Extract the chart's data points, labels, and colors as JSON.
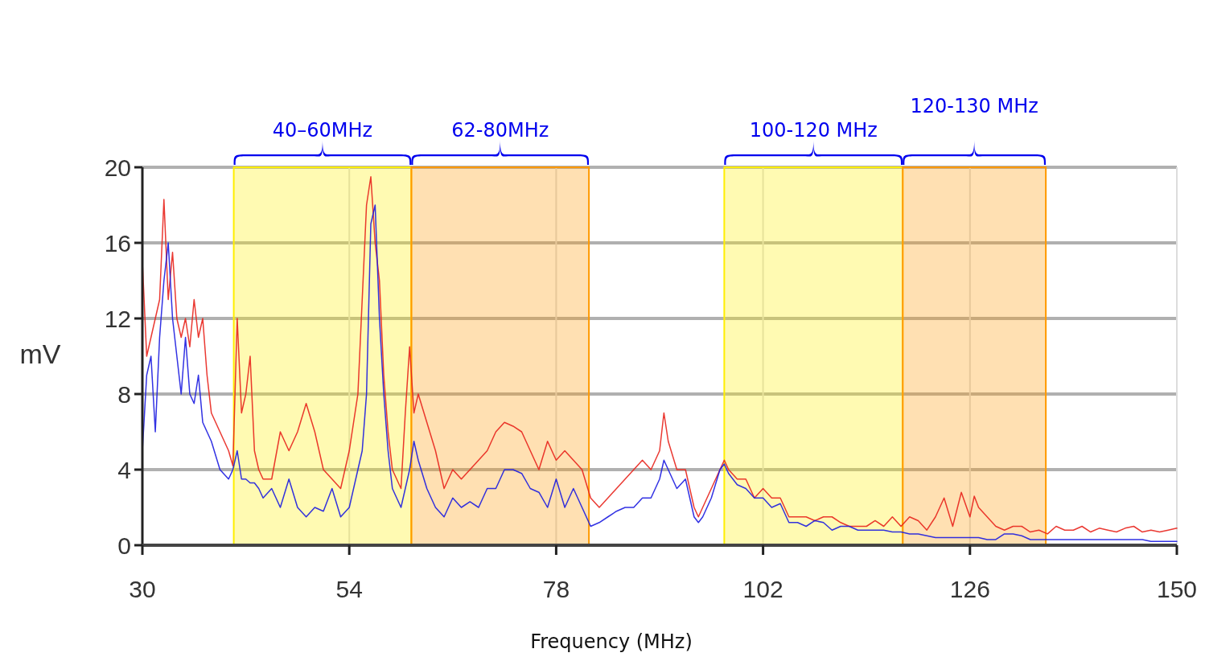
{
  "chart_data": {
    "type": "line",
    "xlabel": "Frequency (MHz)",
    "ylabel": "mV",
    "xlim": [
      30,
      150
    ],
    "xticks": [
      30,
      54,
      78,
      102,
      126,
      150
    ],
    "ylim": [
      0,
      20
    ],
    "yticks": [
      0,
      4,
      8,
      12,
      16,
      20
    ],
    "grid": true,
    "marker": "none",
    "line_style": "solid",
    "x": [
      30,
      30.5,
      31,
      31.5,
      32,
      32.5,
      33,
      33.5,
      34,
      34.5,
      35,
      35.5,
      36,
      36.5,
      37,
      37.5,
      38,
      39,
      40,
      40.5,
      41,
      41.5,
      42,
      42.5,
      43,
      43.5,
      44,
      45,
      46,
      47,
      48,
      49,
      50,
      51,
      52,
      53,
      54,
      55,
      55.5,
      56,
      56.5,
      57,
      57.5,
      58,
      58.5,
      59,
      60,
      60.5,
      61,
      61.5,
      62,
      63,
      64,
      65,
      66,
      67,
      68,
      69,
      70,
      71,
      72,
      73,
      74,
      75,
      76,
      77,
      78,
      79,
      80,
      81,
      82,
      83,
      84,
      85,
      86,
      87,
      88,
      89,
      90,
      90.5,
      91,
      92,
      93,
      94,
      94.5,
      95,
      96,
      97,
      97.5,
      98,
      99,
      100,
      101,
      102,
      103,
      104,
      105,
      106,
      107,
      108,
      109,
      110,
      111,
      112,
      113,
      114,
      115,
      116,
      117,
      118,
      119,
      120,
      121,
      122,
      123,
      124,
      125,
      126,
      126.5,
      127,
      128,
      129,
      130,
      131,
      132,
      133,
      134,
      135,
      136,
      137,
      138,
      139,
      140,
      141,
      142,
      143,
      144,
      145,
      146,
      147,
      148,
      149,
      150
    ],
    "series": [
      {
        "color": "#e8231c",
        "values": [
          15,
          10,
          11,
          12,
          13,
          18.3,
          13,
          15.5,
          12,
          11,
          12,
          10.5,
          13,
          11,
          12,
          9,
          7,
          6,
          5,
          4.2,
          12,
          7,
          8,
          10,
          5,
          4,
          3.5,
          3.5,
          6,
          5,
          6,
          7.5,
          6,
          4,
          3.5,
          3,
          5,
          8,
          13,
          18,
          19.5,
          16,
          14,
          9,
          6,
          4,
          3,
          7,
          10.5,
          7,
          8,
          6.5,
          5,
          3,
          4,
          3.5,
          4,
          4.5,
          5,
          6,
          6.5,
          6.3,
          6,
          5,
          4,
          5.5,
          4.5,
          5,
          4.5,
          4,
          2.5,
          2,
          2.5,
          3,
          3.5,
          4,
          4.5,
          4,
          5,
          7,
          5.5,
          4,
          4,
          2,
          1.5,
          2,
          3,
          4,
          4.5,
          4,
          3.5,
          3.5,
          2.5,
          3,
          2.5,
          2.5,
          1.5,
          1.5,
          1.5,
          1.3,
          1.5,
          1.5,
          1.2,
          1,
          1,
          1,
          1.3,
          1,
          1.5,
          1,
          1.5,
          1.3,
          0.8,
          1.5,
          2.5,
          1,
          2.8,
          1.5,
          2.6,
          2,
          1.5,
          1,
          0.8,
          1,
          1,
          0.7,
          0.8,
          0.6,
          1,
          0.8,
          0.8,
          1,
          0.7,
          0.9,
          0.8,
          0.7,
          0.9,
          1,
          0.7,
          0.8,
          0.7,
          0.8,
          0.9
        ]
      },
      {
        "color": "#1c1ce0",
        "values": [
          5,
          9,
          10,
          6,
          11,
          14,
          16,
          12,
          10,
          8,
          11,
          8,
          7.5,
          9,
          6.5,
          6,
          5.5,
          4,
          3.5,
          4,
          5,
          3.5,
          3.5,
          3.3,
          3.3,
          3,
          2.5,
          3,
          2,
          3.5,
          2,
          1.5,
          2,
          1.8,
          3,
          1.5,
          2,
          4,
          5,
          8,
          17,
          18,
          12,
          8,
          5,
          3,
          2,
          3,
          4,
          5.5,
          4.5,
          3,
          2,
          1.5,
          2.5,
          2,
          2.3,
          2,
          3,
          3,
          4,
          4,
          3.8,
          3,
          2.8,
          2,
          3.5,
          2,
          3,
          2,
          1,
          1.2,
          1.5,
          1.8,
          2,
          2,
          2.5,
          2.5,
          3.5,
          4.5,
          4,
          3,
          3.5,
          1.5,
          1.2,
          1.5,
          2.5,
          4,
          4.3,
          3.8,
          3.2,
          3,
          2.5,
          2.5,
          2,
          2.2,
          1.2,
          1.2,
          1,
          1.3,
          1.2,
          0.8,
          1,
          1,
          0.8,
          0.8,
          0.8,
          0.8,
          0.7,
          0.7,
          0.6,
          0.6,
          0.5,
          0.4,
          0.4,
          0.4,
          0.4,
          0.4,
          0.4,
          0.4,
          0.3,
          0.3,
          0.6,
          0.6,
          0.5,
          0.3,
          0.3,
          0.3,
          0.3,
          0.3,
          0.3,
          0.3,
          0.3,
          0.3,
          0.3,
          0.3,
          0.3,
          0.3,
          0.3,
          0.2,
          0.2,
          0.2,
          0.2
        ]
      }
    ],
    "bands": [
      {
        "axis": "x",
        "from": 40.6,
        "to": 61.2,
        "label": "40–60MHz",
        "color": "#ffee00"
      },
      {
        "axis": "x",
        "from": 61.2,
        "to": 81.8,
        "label": "62-80MHz",
        "color": "#ff9900"
      },
      {
        "axis": "x",
        "from": 97.5,
        "to": 118.2,
        "label": "100-120 MHz",
        "color": "#ffee00"
      },
      {
        "axis": "x",
        "from": 118.2,
        "to": 134.8,
        "label": "120-130 MHz",
        "color": "#ff9900"
      }
    ]
  }
}
